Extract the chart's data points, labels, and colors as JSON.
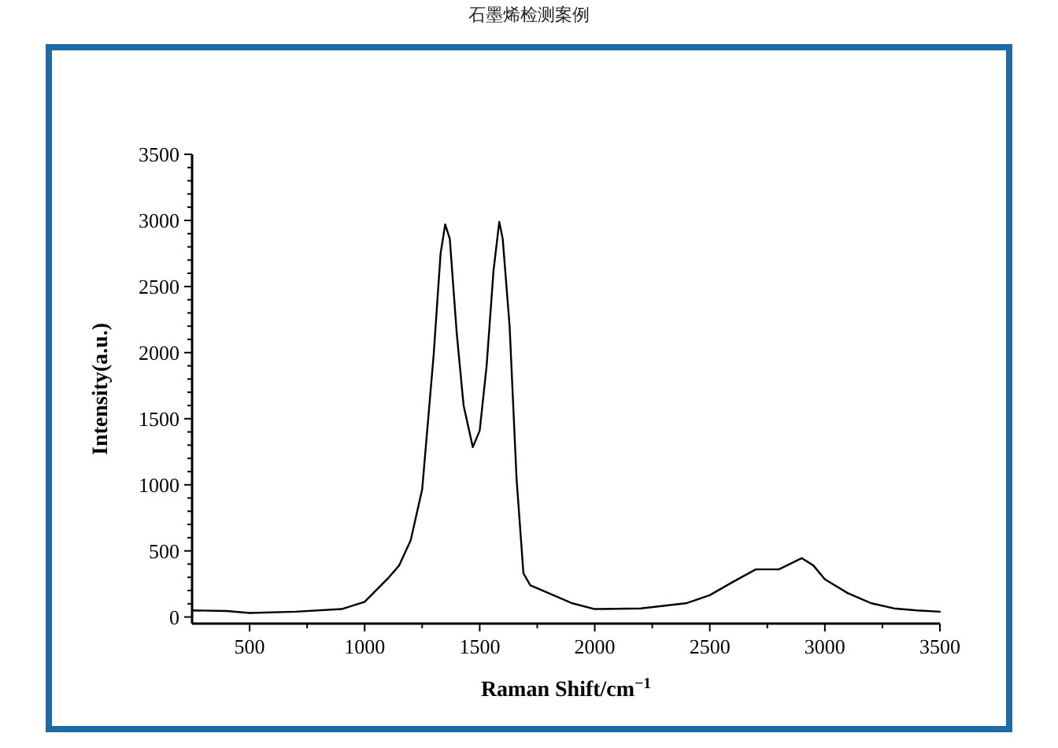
{
  "chart_data": {
    "type": "line",
    "title": "石墨烯检测案例",
    "xlabel": "Raman Shift/cm$^{−1}$",
    "ylabel": "Intensity(a.u.)",
    "x": [
      250,
      400,
      500,
      700,
      900,
      1000,
      1100,
      1150,
      1200,
      1250,
      1300,
      1330,
      1350,
      1370,
      1400,
      1430,
      1470,
      1500,
      1530,
      1560,
      1585,
      1600,
      1630,
      1660,
      1690,
      1720,
      1800,
      1900,
      2000,
      2200,
      2400,
      2500,
      2600,
      2700,
      2800,
      2900,
      2950,
      3000,
      3100,
      3200,
      3300,
      3400,
      3500
    ],
    "series": [
      {
        "color": "#000000",
        "values": [
          50,
          45,
          30,
          40,
          60,
          115,
          290,
          390,
          580,
          965,
          1985,
          2750,
          2970,
          2860,
          2150,
          1600,
          1285,
          1410,
          1900,
          2620,
          2990,
          2860,
          2200,
          1050,
          330,
          240,
          180,
          105,
          60,
          65,
          105,
          165,
          265,
          360,
          360,
          445,
          390,
          285,
          180,
          105,
          65,
          50,
          40
        ]
      }
    ],
    "xlim": [
      250,
      3500
    ],
    "xticks": [
      500,
      1000,
      1500,
      2000,
      2500,
      3000,
      3500
    ],
    "ylim": [
      -50,
      3500
    ],
    "yticks": [
      0,
      500,
      1000,
      1500,
      2000,
      2500,
      3000,
      3500
    ],
    "grid": false,
    "marker": "none",
    "line_style": "solid"
  }
}
